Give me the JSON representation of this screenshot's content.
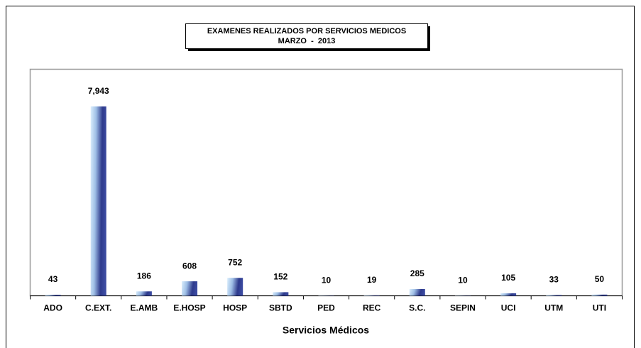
{
  "chart_data": {
    "type": "bar",
    "title": "EXAMENES REALIZADOS POR SERVICIOS MEDICOS",
    "subtitle": "MARZO  -  2013",
    "x_label": "Servicios Médicos",
    "categories": [
      "ADO",
      "C.EXT.",
      "E.AMB",
      "E.HOSP",
      "HOSP",
      "SBTD",
      "PED",
      "REC",
      "S.C.",
      "SEPIN",
      "UCI",
      "UTM",
      "UTI"
    ],
    "values": [
      43,
      7943,
      186,
      608,
      752,
      152,
      10,
      19,
      285,
      10,
      105,
      33,
      50
    ],
    "value_labels": [
      "43",
      "7,943",
      "186",
      "608",
      "752",
      "152",
      "10",
      "19",
      "285",
      "10",
      "105",
      "33",
      "50"
    ],
    "ylim": [
      0,
      9500
    ],
    "color": "#2e3a8c"
  }
}
